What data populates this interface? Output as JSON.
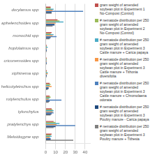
{
  "chart_data": {
    "type": "bar",
    "orientation": "horizontal",
    "categories": [
      "dorylamus spp",
      "aphelenchoides spp",
      "monochid spp",
      "hoplolaimus spp",
      "criconemoides spp",
      "xiphinema spp",
      "helicotyleinchus spp",
      "rotylenchulus spp",
      "tylonchylus",
      "pratylenchys spp",
      "Meloidogyne spp"
    ],
    "series": [
      {
        "name": "gram weight of amended\nsoybean plot in Experiment 1\nNo-Compost (Control)",
        "color": "#C0504D",
        "values": [
          5,
          12,
          6,
          1,
          1,
          1,
          4,
          4,
          6,
          8,
          6
        ]
      },
      {
        "name": "# nematode distribution per 250\ngram weight of amended\nsoybean plot in Experiment 2\nNo-Compost (Control)",
        "color": "#9BBB59",
        "values": [
          5,
          14,
          5,
          1,
          1,
          1,
          5,
          5,
          7,
          10,
          5
        ]
      },
      {
        "name": "# nematode distribution per 250\ngram weight of amended\nsoybean plot in Experiment 3\nCattle manure + Carica papaya",
        "color": "#4BACC6",
        "values": [
          8,
          18,
          8,
          2,
          1,
          2,
          4,
          4,
          8,
          14,
          6
        ]
      },
      {
        "name": "# nematode distribution per 250\ngram weight of amended\nsoybean plot in Experiment 3\nCattle manure + Tithonia\ndiversifolia",
        "color": "#F79646",
        "values": [
          7,
          10,
          7,
          1,
          1,
          2,
          6,
          3,
          7,
          11,
          4
        ]
      },
      {
        "name": "# nematode distribution per 250\ngram weight of amended\nsoybean plot in Experiment 3\nCattle manure + Chromolaena\nodorata",
        "color": "#4F81BD",
        "values": [
          38,
          9,
          11,
          1,
          1,
          1,
          3,
          16,
          8,
          30,
          5
        ]
      },
      {
        "name": "# nematode distribution per 250\ngram weight of amended\nsoybean plot in Experiment 3\nPoultry manure - Carica papaya",
        "color": "#1F497D",
        "values": [
          6,
          9,
          5,
          1,
          1,
          1,
          3,
          4,
          6,
          10,
          5
        ]
      },
      {
        "name": "# nematode distribution per 250\ngram weight of amended\nsoybean plot in Experiment 3\nPoultry manure + Tithesia",
        "color": "#7F7F7F",
        "values": [
          6,
          7,
          4,
          1,
          1,
          1,
          2,
          3,
          5,
          8,
          28
        ]
      }
    ],
    "xlim": [
      0,
      45
    ],
    "xticks": [
      0,
      10,
      20,
      30,
      40
    ],
    "grid": true,
    "legend": "right"
  }
}
